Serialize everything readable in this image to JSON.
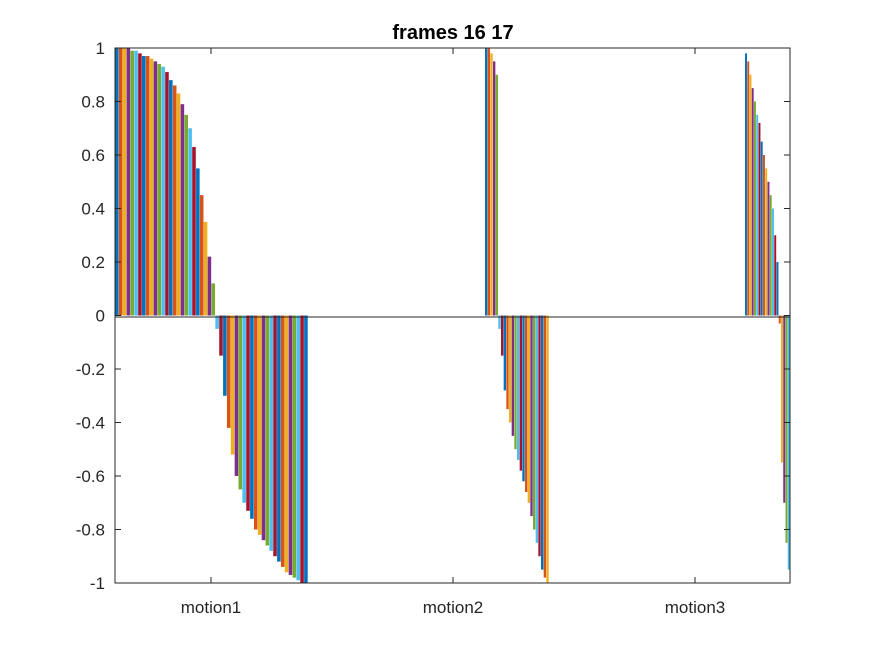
{
  "chart_data": {
    "type": "bar",
    "title": "frames 16 17",
    "xlabel": "",
    "ylabel": "",
    "ylim": [
      -1,
      1
    ],
    "yticks": [
      "-1",
      "-0.8",
      "-0.6",
      "-0.4",
      "-0.2",
      "0",
      "0.2",
      "0.4",
      "0.6",
      "0.8",
      "1"
    ],
    "categories": [
      "motion1",
      "motion2",
      "motion3"
    ],
    "grid": false,
    "legend": "none",
    "series_colors": [
      "#0072BD",
      "#D95319",
      "#EDB120",
      "#7E2F8E",
      "#77AC30",
      "#4DBEEE",
      "#A2142F"
    ],
    "groups": [
      {
        "category": "motion1",
        "values": [
          1.0,
          1.0,
          1.0,
          1.0,
          0.99,
          0.99,
          0.98,
          0.97,
          0.97,
          0.96,
          0.95,
          0.94,
          0.93,
          0.91,
          0.88,
          0.86,
          0.83,
          0.79,
          0.75,
          0.7,
          0.63,
          0.55,
          0.45,
          0.35,
          0.22,
          0.12,
          -0.05,
          -0.15,
          -0.3,
          -0.42,
          -0.52,
          -0.6,
          -0.65,
          -0.7,
          -0.73,
          -0.76,
          -0.8,
          -0.82,
          -0.84,
          -0.86,
          -0.88,
          -0.9,
          -0.92,
          -0.94,
          -0.96,
          -0.97,
          -0.98,
          -0.99,
          -1.0,
          -1.0
        ]
      },
      {
        "category": "motion2",
        "values": [
          1.0,
          1.0,
          0.98,
          0.95,
          0.9,
          -0.05,
          -0.15,
          -0.28,
          -0.35,
          -0.4,
          -0.45,
          -0.5,
          -0.54,
          -0.58,
          -0.62,
          -0.66,
          -0.7,
          -0.75,
          -0.8,
          -0.85,
          -0.9,
          -0.95,
          -0.98,
          -1.0
        ]
      },
      {
        "category": "motion3",
        "values": [
          0.98,
          0.95,
          0.9,
          0.85,
          0.8,
          0.75,
          0.72,
          0.65,
          0.6,
          0.55,
          0.5,
          0.45,
          0.4,
          0.3,
          0.2,
          -0.03,
          -0.55,
          -0.7,
          -0.85,
          -0.95
        ]
      }
    ]
  }
}
